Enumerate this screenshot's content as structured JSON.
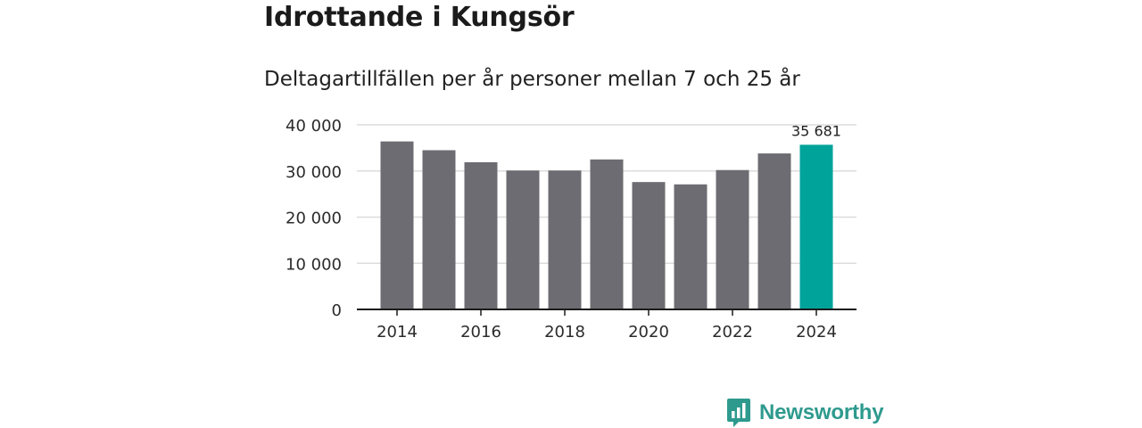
{
  "title": "Idrottande i Kungsör",
  "subtitle": "Deltagartillfällen per år personer mellan 7 och 25 år",
  "brand": {
    "name": "Newsworthy",
    "icon": "newsworthy-bar-chart-icon",
    "color": "#2e9a8e"
  },
  "colors": {
    "bar": "#6d6c72",
    "highlight": "#00a39a",
    "grid": "#dcdcdc",
    "axis": "#1b1b1b"
  },
  "chart_data": {
    "type": "bar",
    "title": "Idrottande i Kungsör",
    "subtitle": "Deltagartillfällen per år personer mellan 7 och 25 år",
    "xlabel": "",
    "ylabel": "",
    "categories": [
      "2014",
      "2015",
      "2016",
      "2017",
      "2018",
      "2019",
      "2020",
      "2021",
      "2022",
      "2023",
      "2024"
    ],
    "values": [
      36400,
      34500,
      31900,
      30100,
      30100,
      32500,
      27600,
      27100,
      30200,
      33800,
      35681
    ],
    "highlight_category": "2024",
    "x_tick_labels": [
      "2014",
      "2016",
      "2018",
      "2020",
      "2022",
      "2024"
    ],
    "y_ticks": [
      0,
      10000,
      20000,
      30000,
      40000
    ],
    "y_tick_labels": [
      "0",
      "10 000",
      "20 000",
      "30 000",
      "40 000"
    ],
    "ylim": [
      0,
      40000
    ],
    "grid": true,
    "legend": "none",
    "annotations": [
      {
        "category": "2024",
        "text": "35 681"
      }
    ]
  }
}
